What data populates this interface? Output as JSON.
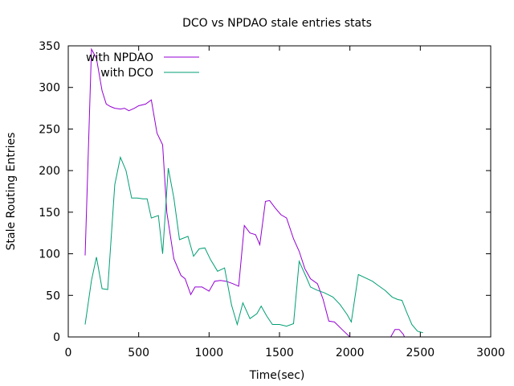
{
  "chart_data": {
    "type": "line",
    "title": "DCO vs NPDAO stale entries stats",
    "xlabel": "Time(sec)",
    "ylabel": "Stale Routing Entries",
    "xlim": [
      0,
      3000
    ],
    "ylim": [
      0,
      350
    ],
    "xticks": [
      0,
      500,
      1000,
      1500,
      2000,
      2500,
      3000
    ],
    "yticks": [
      0,
      50,
      100,
      150,
      200,
      250,
      300,
      350
    ],
    "legend_position": "top-left",
    "grid": false,
    "series": [
      {
        "name": "with NPDAO",
        "color": "#9400d3",
        "points": [
          [
            120,
            98
          ],
          [
            165,
            346
          ],
          [
            200,
            335
          ],
          [
            240,
            296
          ],
          [
            270,
            280
          ],
          [
            300,
            277
          ],
          [
            330,
            275
          ],
          [
            370,
            274
          ],
          [
            400,
            275
          ],
          [
            430,
            272
          ],
          [
            470,
            275
          ],
          [
            500,
            278
          ],
          [
            550,
            280
          ],
          [
            590,
            285
          ],
          [
            630,
            245
          ],
          [
            670,
            231
          ],
          [
            700,
            150
          ],
          [
            750,
            94
          ],
          [
            800,
            74
          ],
          [
            830,
            70
          ],
          [
            870,
            51
          ],
          [
            900,
            60
          ],
          [
            950,
            60
          ],
          [
            1000,
            55
          ],
          [
            1040,
            67
          ],
          [
            1080,
            68
          ],
          [
            1120,
            67
          ],
          [
            1170,
            64
          ],
          [
            1210,
            61
          ],
          [
            1250,
            134
          ],
          [
            1290,
            125
          ],
          [
            1330,
            123
          ],
          [
            1360,
            111
          ],
          [
            1400,
            163
          ],
          [
            1430,
            164
          ],
          [
            1470,
            155
          ],
          [
            1510,
            147
          ],
          [
            1550,
            143
          ],
          [
            1600,
            118
          ],
          [
            1640,
            103
          ],
          [
            1680,
            82
          ],
          [
            1720,
            70
          ],
          [
            1770,
            64
          ],
          [
            1810,
            45
          ],
          [
            1850,
            19
          ],
          [
            1890,
            18
          ],
          [
            1950,
            8
          ],
          [
            2000,
            0
          ],
          [
            2020,
            0
          ],
          [
            2060,
            -10
          ],
          [
            2110,
            -15
          ],
          [
            2170,
            -10
          ],
          [
            2240,
            -3
          ],
          [
            2290,
            0
          ],
          [
            2320,
            9
          ],
          [
            2350,
            9
          ],
          [
            2380,
            3
          ],
          [
            2400,
            -5
          ],
          [
            2460,
            -10
          ],
          [
            2500,
            -12
          ]
        ]
      },
      {
        "name": "with DCO",
        "color": "#009e73",
        "points": [
          [
            120,
            15
          ],
          [
            165,
            68
          ],
          [
            200,
            96
          ],
          [
            240,
            58
          ],
          [
            280,
            57
          ],
          [
            330,
            183
          ],
          [
            370,
            216
          ],
          [
            410,
            200
          ],
          [
            450,
            167
          ],
          [
            490,
            167
          ],
          [
            530,
            166
          ],
          [
            560,
            166
          ],
          [
            590,
            143
          ],
          [
            640,
            146
          ],
          [
            670,
            100
          ],
          [
            710,
            203
          ],
          [
            750,
            167
          ],
          [
            790,
            117
          ],
          [
            850,
            121
          ],
          [
            890,
            97
          ],
          [
            930,
            106
          ],
          [
            970,
            107
          ],
          [
            1010,
            93
          ],
          [
            1060,
            79
          ],
          [
            1110,
            83
          ],
          [
            1160,
            38
          ],
          [
            1200,
            15
          ],
          [
            1240,
            41
          ],
          [
            1290,
            22
          ],
          [
            1340,
            28
          ],
          [
            1370,
            37
          ],
          [
            1410,
            25
          ],
          [
            1450,
            15
          ],
          [
            1500,
            15
          ],
          [
            1550,
            13
          ],
          [
            1600,
            16
          ],
          [
            1640,
            91
          ],
          [
            1690,
            72
          ],
          [
            1720,
            60
          ],
          [
            1770,
            56
          ],
          [
            1820,
            53
          ],
          [
            1880,
            48
          ],
          [
            1930,
            39
          ],
          [
            1980,
            27
          ],
          [
            2010,
            18
          ],
          [
            2060,
            75
          ],
          [
            2110,
            71
          ],
          [
            2160,
            67
          ],
          [
            2200,
            62
          ],
          [
            2250,
            56
          ],
          [
            2300,
            48
          ],
          [
            2340,
            45
          ],
          [
            2370,
            44
          ],
          [
            2400,
            31
          ],
          [
            2440,
            15
          ],
          [
            2480,
            7
          ],
          [
            2520,
            5
          ]
        ]
      }
    ]
  }
}
